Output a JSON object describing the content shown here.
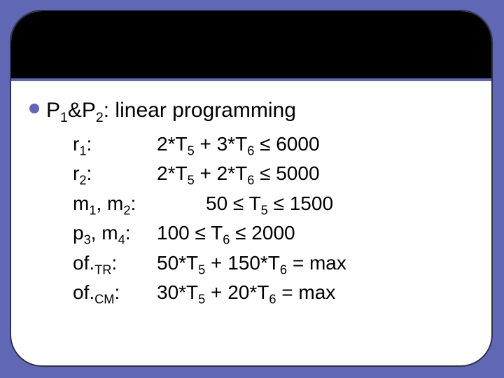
{
  "colors": {
    "background": "#6067b4",
    "card_bg": "#ffffff",
    "card_border": "#303046",
    "topbar_bg": "#000000",
    "topbar_underline": "#6067b4",
    "bullet": "#6067b4",
    "text": "#000000"
  },
  "heading": {
    "prefix_P": "P",
    "sub1": "1",
    "amp": "&",
    "sub2": "2",
    "rest": ": linear programming"
  },
  "lines": [
    {
      "label_main": "r",
      "label_sub": "1",
      "label_suffix": ":",
      "value_pre": "2*T",
      "value_sub1": "5",
      "value_mid": " + 3*T",
      "value_sub2": "6",
      "value_post": " ≤ 6000",
      "wide": false
    },
    {
      "label_main": "r",
      "label_sub": "2",
      "label_suffix": ":",
      "value_pre": "2*T",
      "value_sub1": "5",
      "value_mid": " + 2*T",
      "value_sub2": "6",
      "value_post": " ≤ 5000",
      "wide": false
    },
    {
      "label_main": "m",
      "label_sub": "1",
      "label_mid": ", m",
      "label_sub2": "2",
      "label_suffix": ":",
      "value_pre": "50 ≤ T",
      "value_sub1": "5",
      "value_mid": " ≤ 1500",
      "value_sub2": "",
      "value_post": "",
      "wide": true
    },
    {
      "label_main": "p",
      "label_sub": "3",
      "label_mid": ", m",
      "label_sub2": "4",
      "label_suffix": ":",
      "value_pre": "100 ≤ T",
      "value_sub1": "6",
      "value_mid": " ≤ 2000",
      "value_sub2": "",
      "value_post": "",
      "wide": false
    },
    {
      "label_main": "of.",
      "label_sub": "TR",
      "label_suffix": ":",
      "value_pre": "50*T",
      "value_sub1": "5",
      "value_mid": " + 150*T",
      "value_sub2": "6",
      "value_post": " = max",
      "wide": false
    },
    {
      "label_main": "of.",
      "label_sub": "CM",
      "label_suffix": ":",
      "value_pre": "30*T",
      "value_sub1": "5",
      "value_mid": " + 20*T",
      "value_sub2": "6",
      "value_post": " = max",
      "wide": false
    }
  ]
}
